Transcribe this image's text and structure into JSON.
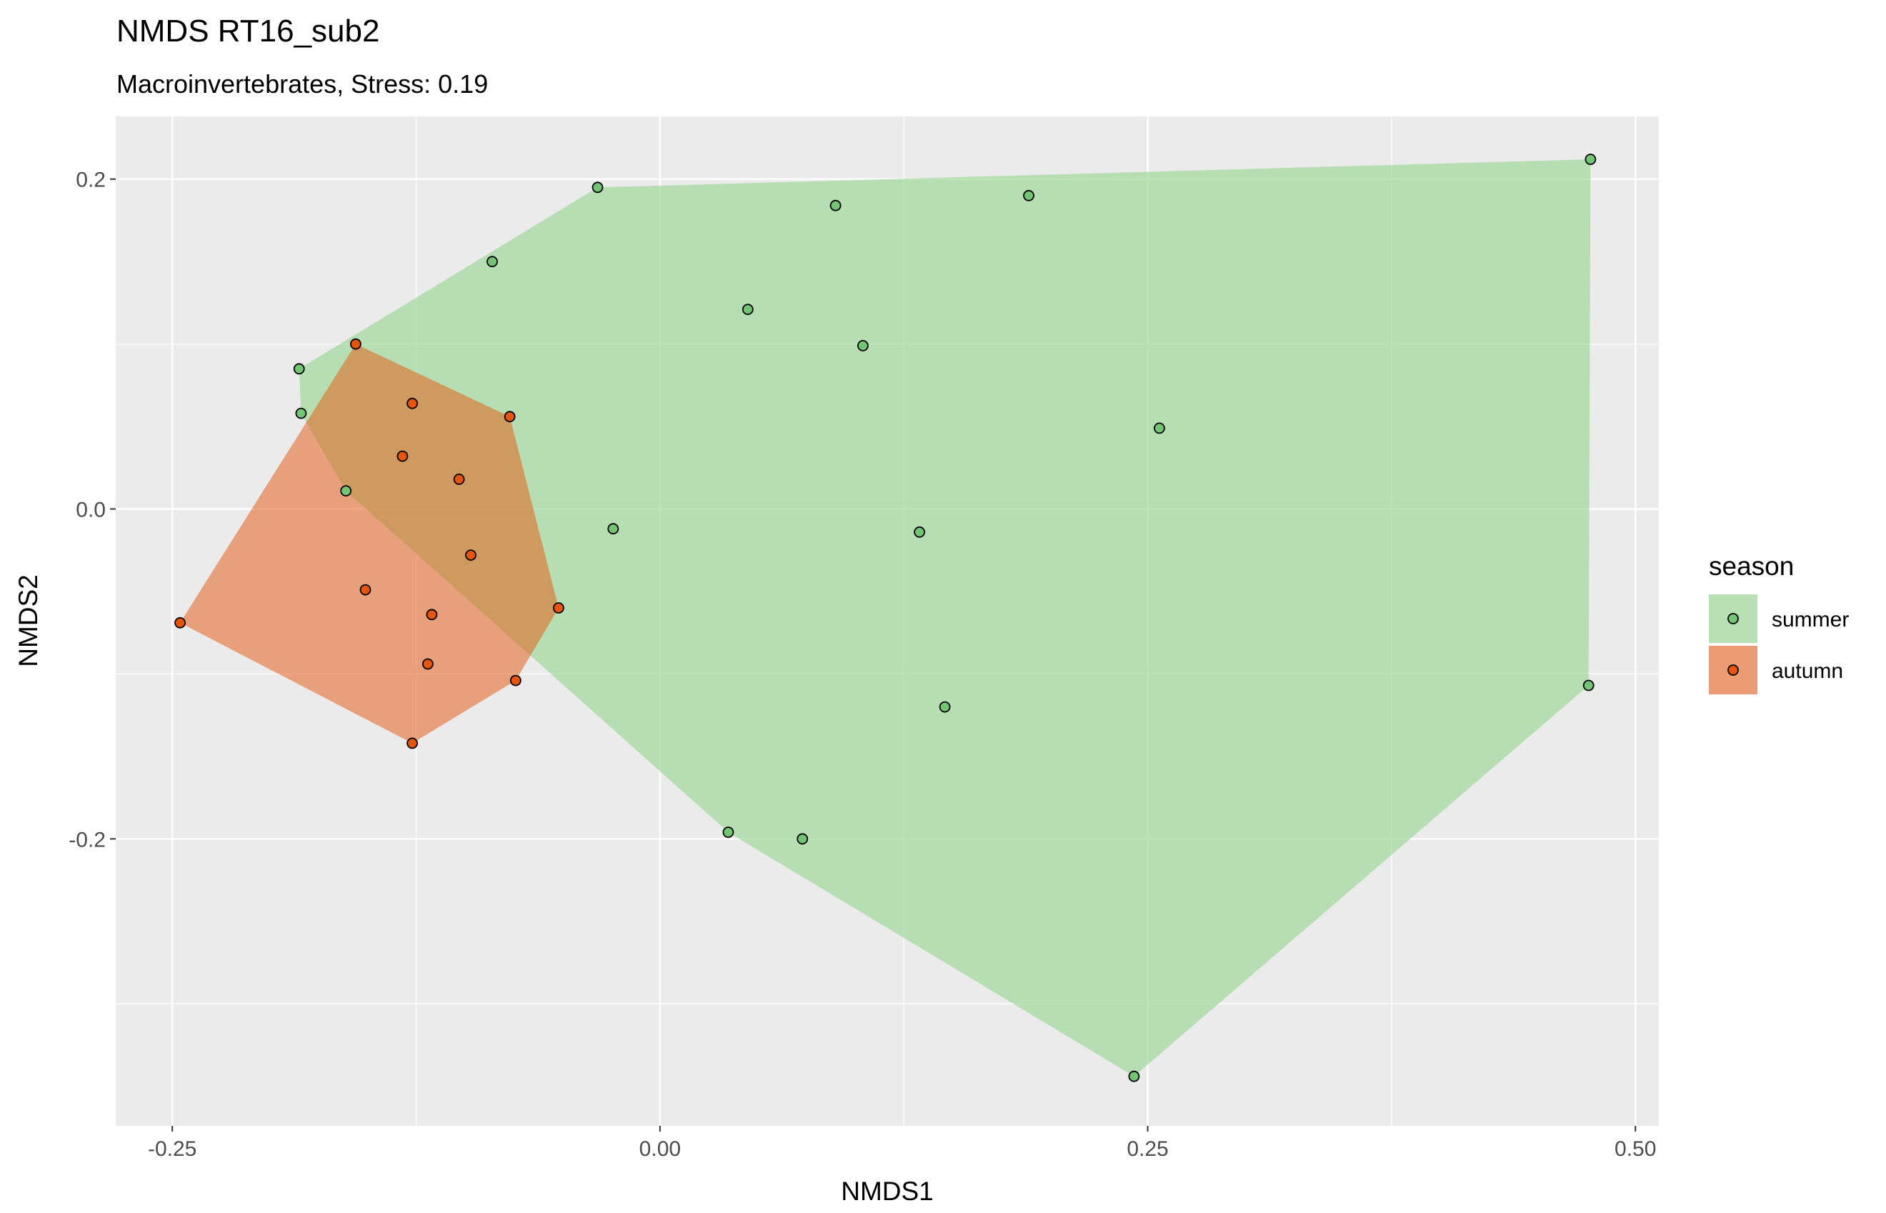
{
  "chart_data": {
    "type": "scatter",
    "title": "NMDS RT16_sub2",
    "subtitle": "Macroinvertebrates, Stress: 0.19",
    "xlabel": "NMDS1",
    "ylabel": "NMDS2",
    "xlim": [
      -0.279,
      0.512
    ],
    "ylim": [
      -0.374,
      0.238
    ],
    "x_ticks": [
      -0.25,
      0.0,
      0.25,
      0.5
    ],
    "x_tick_labels": [
      "-0.25",
      "0.00",
      "0.25",
      "0.50"
    ],
    "y_ticks": [
      -0.2,
      0.0,
      0.2
    ],
    "y_tick_labels": [
      "-0.2",
      "0.0",
      "0.2"
    ],
    "grid": true,
    "legend": {
      "title": "season",
      "position": "right"
    },
    "series": [
      {
        "name": "summer",
        "point_color": "#74c476",
        "hull_color": "#a1d99b",
        "points": [
          [
            0.477,
            0.212
          ],
          [
            -0.032,
            0.195
          ],
          [
            0.09,
            0.184
          ],
          [
            0.189,
            0.19
          ],
          [
            -0.086,
            0.15
          ],
          [
            0.045,
            0.121
          ],
          [
            0.104,
            0.099
          ],
          [
            -0.185,
            0.085
          ],
          [
            -0.184,
            0.058
          ],
          [
            0.256,
            0.049
          ],
          [
            -0.161,
            0.011
          ],
          [
            -0.024,
            -0.012
          ],
          [
            0.133,
            -0.014
          ],
          [
            0.146,
            -0.12
          ],
          [
            0.476,
            -0.107
          ],
          [
            0.035,
            -0.196
          ],
          [
            0.073,
            -0.2
          ],
          [
            0.243,
            -0.344
          ]
        ]
      },
      {
        "name": "autumn",
        "point_color": "#e6550d",
        "hull_color": "#e6550d",
        "points": [
          [
            -0.156,
            0.1
          ],
          [
            -0.127,
            0.064
          ],
          [
            -0.077,
            0.056
          ],
          [
            -0.132,
            0.032
          ],
          [
            -0.103,
            0.018
          ],
          [
            -0.097,
            -0.028
          ],
          [
            -0.151,
            -0.049
          ],
          [
            -0.117,
            -0.064
          ],
          [
            -0.052,
            -0.06
          ],
          [
            -0.246,
            -0.069
          ],
          [
            -0.119,
            -0.094
          ],
          [
            -0.074,
            -0.104
          ],
          [
            -0.127,
            -0.142
          ]
        ]
      }
    ]
  }
}
